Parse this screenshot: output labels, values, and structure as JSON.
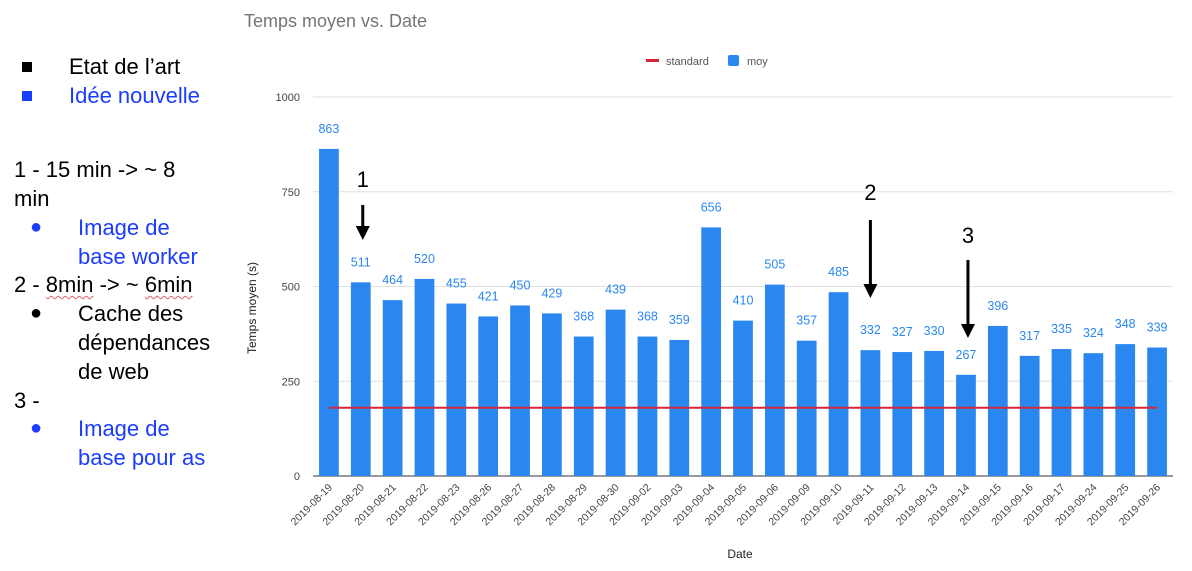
{
  "notes": {
    "legend": [
      {
        "label": "Etat de l’art",
        "color": "#000000"
      },
      {
        "label": "Idée nouvelle",
        "color": "#1a3cff"
      }
    ],
    "steps": [
      {
        "heading_line1": "1 - 15 min -> ~ 8",
        "heading_line2": "min",
        "bullet": {
          "lines": [
            "Image de",
            "base worker"
          ],
          "color": "#1a3cff"
        }
      },
      {
        "heading_prefix": "2 - ",
        "heading_mid": "8min",
        "heading_sep": " -> ~ ",
        "heading_end": "6min",
        "bullet": {
          "lines": [
            "Cache des",
            "dépendances",
            "de web"
          ],
          "color": "#000000"
        }
      },
      {
        "heading_line1": "3 -",
        "bullet": {
          "lines": [
            "Image de",
            "base pour as"
          ],
          "color": "#1a3cff"
        }
      }
    ]
  },
  "chart_data": {
    "type": "bar",
    "title": "Temps moyen vs. Date",
    "xlabel": "Date",
    "ylabel": "Temps moyen (s)",
    "ylim": [
      0,
      1000
    ],
    "yticks": [
      0,
      250,
      500,
      750,
      1000
    ],
    "grid": true,
    "legend_position": "top",
    "categories": [
      "2019-08-19",
      "2019-08-20",
      "2019-08-21",
      "2019-08-22",
      "2019-08-23",
      "2019-08-26",
      "2019-08-27",
      "2019-08-28",
      "2019-08-29",
      "2019-08-30",
      "2019-09-02",
      "2019-09-03",
      "2019-09-04",
      "2019-09-05",
      "2019-09-06",
      "2019-09-09",
      "2019-09-10",
      "2019-09-11",
      "2019-09-12",
      "2019-09-13",
      "2019-09-14",
      "2019-09-15",
      "2019-09-16",
      "2019-09-17",
      "2019-09-24",
      "2019-09-25",
      "2019-09-26"
    ],
    "series": [
      {
        "name": "moy",
        "type": "bar",
        "color": "#2a87f0",
        "values": [
          863,
          511,
          464,
          520,
          455,
          421,
          450,
          429,
          368,
          439,
          368,
          359,
          656,
          410,
          505,
          357,
          485,
          332,
          327,
          330,
          267,
          396,
          317,
          335,
          324,
          348,
          339
        ]
      },
      {
        "name": "standard",
        "type": "line",
        "color": "#d62738",
        "values": [
          180,
          180,
          180,
          180,
          180,
          180,
          180,
          180,
          180,
          180,
          180,
          180,
          180,
          180,
          180,
          180,
          180,
          180,
          180,
          180,
          180,
          180,
          180,
          180,
          180,
          180,
          180
        ]
      }
    ],
    "annotations": [
      {
        "label": "1",
        "category": "2019-08-20"
      },
      {
        "label": "2",
        "category": "2019-09-11"
      },
      {
        "label": "3",
        "category": "2019-09-14"
      }
    ]
  }
}
